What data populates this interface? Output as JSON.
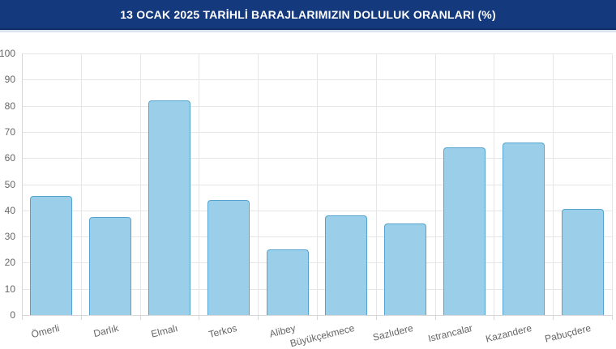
{
  "header": {
    "title": "13 OCAK 2025 TARİHLİ BARAJLARIMIZIN DOLULUK ORANLARI (%)"
  },
  "colors": {
    "header_bg": "#14397c",
    "bar_fill": "#9bcfe9",
    "bar_border": "#55a4cf",
    "grid_line": "#e6e6e6",
    "axis_line": "#d6d6d6",
    "tick_mark": "#cfd6de",
    "tick_label": "#666666",
    "background": "#ffffff"
  },
  "chart_data": {
    "type": "bar",
    "title": "13 OCAK 2025 TARİHLİ BARAJLARIMIZIN DOLULUK ORANLARI (%)",
    "categories": [
      "Ömerli",
      "Darlık",
      "Elmalı",
      "Terkos",
      "Alibey",
      "Büyükçekmece",
      "Sazlıdere",
      "Istrancalar",
      "Kazandere",
      "Pabuçdere"
    ],
    "values": [
      45.5,
      37.5,
      82,
      44,
      25,
      38,
      35,
      64,
      66,
      40.5
    ],
    "xlabel": "",
    "ylabel": "",
    "ylim": [
      0,
      100
    ],
    "yticks": [
      0,
      10,
      20,
      30,
      40,
      50,
      60,
      70,
      80,
      90,
      100
    ],
    "grid": "on",
    "legend": "off",
    "bar_corner_radius": 4
  }
}
